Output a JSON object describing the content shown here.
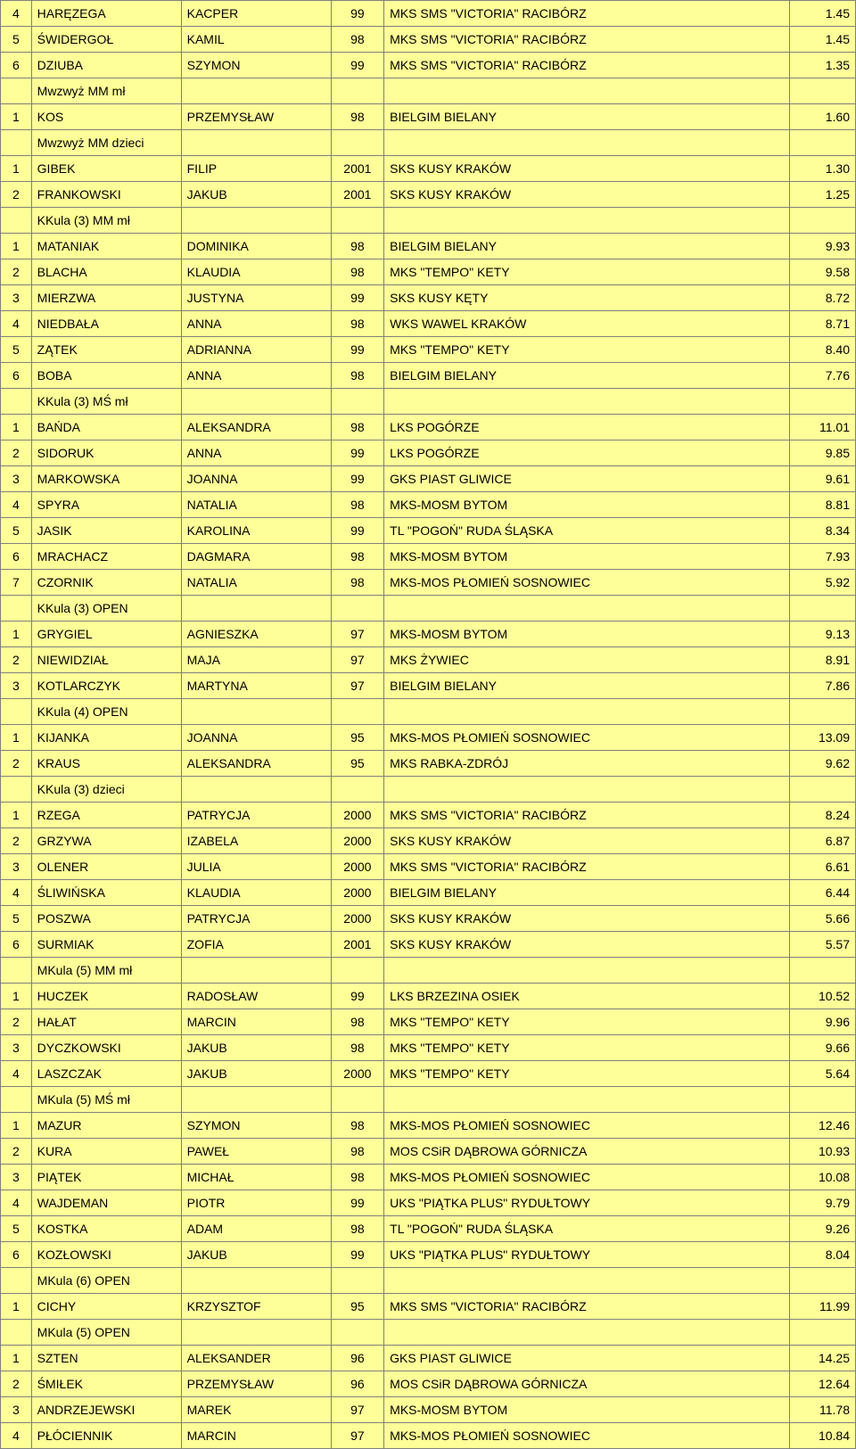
{
  "colors": {
    "cell_bg": "#ffff99",
    "border": "#808080",
    "text": "#000000"
  },
  "rows": [
    {
      "type": "d",
      "pos": "4",
      "last": "HARĘZEGA",
      "first": "KACPER",
      "year": "99",
      "club": "MKS SMS \"VICTORIA\" RACIBÓRZ",
      "score": "1.45"
    },
    {
      "type": "d",
      "pos": "5",
      "last": "ŚWIDERGOŁ",
      "first": "KAMIL",
      "year": "98",
      "club": "MKS SMS \"VICTORIA\" RACIBÓRZ",
      "score": "1.45"
    },
    {
      "type": "d",
      "pos": "6",
      "last": "DZIUBA",
      "first": "SZYMON",
      "year": "99",
      "club": "MKS SMS \"VICTORIA\" RACIBÓRZ",
      "score": "1.35"
    },
    {
      "type": "h",
      "label": "Mwzwyż MM mł"
    },
    {
      "type": "d",
      "pos": "1",
      "last": "KOS",
      "first": "PRZEMYSŁAW",
      "year": "98",
      "club": "BIELGIM BIELANY",
      "score": "1.60"
    },
    {
      "type": "h",
      "label": "Mwzwyż MM dzieci"
    },
    {
      "type": "d",
      "pos": "1",
      "last": "GIBEK",
      "first": "FILIP",
      "year": "2001",
      "club": "SKS KUSY KRAKÓW",
      "score": "1.30"
    },
    {
      "type": "d",
      "pos": "2",
      "last": "FRANKOWSKI",
      "first": "JAKUB",
      "year": "2001",
      "club": "SKS KUSY KRAKÓW",
      "score": "1.25"
    },
    {
      "type": "h",
      "label": "KKula (3) MM mł"
    },
    {
      "type": "d",
      "pos": "1",
      "last": "MATANIAK",
      "first": "DOMINIKA",
      "year": "98",
      "club": "BIELGIM BIELANY",
      "score": "9.93"
    },
    {
      "type": "d",
      "pos": "2",
      "last": "BLACHA",
      "first": "KLAUDIA",
      "year": "98",
      "club": "MKS \"TEMPO\" KETY",
      "score": "9.58"
    },
    {
      "type": "d",
      "pos": "3",
      "last": "MIERZWA",
      "first": "JUSTYNA",
      "year": "99",
      "club": "SKS KUSY KĘTY",
      "score": "8.72"
    },
    {
      "type": "d",
      "pos": "4",
      "last": "NIEDBAŁA",
      "first": "ANNA",
      "year": "98",
      "club": "WKS WAWEL KRAKÓW",
      "score": "8.71"
    },
    {
      "type": "d",
      "pos": "5",
      "last": "ZĄTEK",
      "first": "ADRIANNA",
      "year": "99",
      "club": "MKS \"TEMPO\" KETY",
      "score": "8.40"
    },
    {
      "type": "d",
      "pos": "6",
      "last": "BOBA",
      "first": "ANNA",
      "year": "98",
      "club": "BIELGIM BIELANY",
      "score": "7.76"
    },
    {
      "type": "h",
      "label": "KKula (3) MŚ mł"
    },
    {
      "type": "d",
      "pos": "1",
      "last": "BAŃDA",
      "first": "ALEKSANDRA",
      "year": "98",
      "club": "LKS POGÓRZE",
      "score": "11.01"
    },
    {
      "type": "d",
      "pos": "2",
      "last": "SIDORUK",
      "first": "ANNA",
      "year": "99",
      "club": "LKS POGÓRZE",
      "score": "9.85"
    },
    {
      "type": "d",
      "pos": "3",
      "last": "MARKOWSKA",
      "first": "JOANNA",
      "year": "99",
      "club": "GKS PIAST GLIWICE",
      "score": "9.61"
    },
    {
      "type": "d",
      "pos": "4",
      "last": "SPYRA",
      "first": "NATALIA",
      "year": "98",
      "club": "MKS-MOSM BYTOM",
      "score": "8.81"
    },
    {
      "type": "d",
      "pos": "5",
      "last": "JASIK",
      "first": "KAROLINA",
      "year": "99",
      "club": "TL \"POGOŃ\" RUDA ŚLĄSKA",
      "score": "8.34"
    },
    {
      "type": "d",
      "pos": "6",
      "last": "MRACHACZ",
      "first": "DAGMARA",
      "year": "98",
      "club": "MKS-MOSM BYTOM",
      "score": "7.93"
    },
    {
      "type": "d",
      "pos": "7",
      "last": "CZORNIK",
      "first": "NATALIA",
      "year": "98",
      "club": "MKS-MOS PŁOMIEŃ SOSNOWIEC",
      "score": "5.92"
    },
    {
      "type": "h",
      "label": "KKula (3) OPEN"
    },
    {
      "type": "d",
      "pos": "1",
      "last": "GRYGIEL",
      "first": "AGNIESZKA",
      "year": "97",
      "club": "MKS-MOSM BYTOM",
      "score": "9.13"
    },
    {
      "type": "d",
      "pos": "2",
      "last": "NIEWIDZIAŁ",
      "first": "MAJA",
      "year": "97",
      "club": "MKS ŻYWIEC",
      "score": "8.91"
    },
    {
      "type": "d",
      "pos": "3",
      "last": "KOTLARCZYK",
      "first": "MARTYNA",
      "year": "97",
      "club": "BIELGIM BIELANY",
      "score": "7.86"
    },
    {
      "type": "h",
      "label": "KKula (4) OPEN"
    },
    {
      "type": "d",
      "pos": "1",
      "last": "KIJANKA",
      "first": "JOANNA",
      "year": "95",
      "club": "MKS-MOS PŁOMIEŃ SOSNOWIEC",
      "score": "13.09"
    },
    {
      "type": "d",
      "pos": "2",
      "last": "KRAUS",
      "first": "ALEKSANDRA",
      "year": "95",
      "club": "MKS RABKA-ZDRÓJ",
      "score": "9.62"
    },
    {
      "type": "h",
      "label": "KKula (3) dzieci"
    },
    {
      "type": "d",
      "pos": "1",
      "last": "RZEGA",
      "first": "PATRYCJA",
      "year": "2000",
      "club": "MKS SMS \"VICTORIA\" RACIBÓRZ",
      "score": "8.24"
    },
    {
      "type": "d",
      "pos": "2",
      "last": "GRZYWA",
      "first": "IZABELA",
      "year": "2000",
      "club": "SKS KUSY KRAKÓW",
      "score": "6.87"
    },
    {
      "type": "d",
      "pos": "3",
      "last": "OLENER",
      "first": "JULIA",
      "year": "2000",
      "club": "MKS SMS \"VICTORIA\" RACIBÓRZ",
      "score": "6.61"
    },
    {
      "type": "d",
      "pos": "4",
      "last": "ŚLIWIŃSKA",
      "first": "KLAUDIA",
      "year": "2000",
      "club": "BIELGIM BIELANY",
      "score": "6.44"
    },
    {
      "type": "d",
      "pos": "5",
      "last": "POSZWA",
      "first": "PATRYCJA",
      "year": "2000",
      "club": "SKS KUSY KRAKÓW",
      "score": "5.66"
    },
    {
      "type": "d",
      "pos": "6",
      "last": "SURMIAK",
      "first": "ZOFIA",
      "year": "2001",
      "club": "SKS KUSY KRAKÓW",
      "score": "5.57"
    },
    {
      "type": "h",
      "label": "MKula (5) MM mł"
    },
    {
      "type": "d",
      "pos": "1",
      "last": "HUCZEK",
      "first": "RADOSŁAW",
      "year": "99",
      "club": "LKS BRZEZINA OSIEK",
      "score": "10.52"
    },
    {
      "type": "d",
      "pos": "2",
      "last": "HAŁAT",
      "first": "MARCIN",
      "year": "98",
      "club": "MKS \"TEMPO\" KETY",
      "score": "9.96"
    },
    {
      "type": "d",
      "pos": "3",
      "last": "DYCZKOWSKI",
      "first": "JAKUB",
      "year": "98",
      "club": "MKS \"TEMPO\" KETY",
      "score": "9.66"
    },
    {
      "type": "d",
      "pos": "4",
      "last": "LASZCZAK",
      "first": "JAKUB",
      "year": "2000",
      "club": "MKS \"TEMPO\" KETY",
      "score": "5.64"
    },
    {
      "type": "h",
      "label": "MKula (5) MŚ mł"
    },
    {
      "type": "d",
      "pos": "1",
      "last": "MAZUR",
      "first": "SZYMON",
      "year": "98",
      "club": "MKS-MOS PŁOMIEŃ SOSNOWIEC",
      "score": "12.46"
    },
    {
      "type": "d",
      "pos": "2",
      "last": "KURA",
      "first": "PAWEŁ",
      "year": "98",
      "club": "MOS CSiR DĄBROWA GÓRNICZA",
      "score": "10.93"
    },
    {
      "type": "d",
      "pos": "3",
      "last": "PIĄTEK",
      "first": "MICHAŁ",
      "year": "98",
      "club": "MKS-MOS PŁOMIEŃ SOSNOWIEC",
      "score": "10.08"
    },
    {
      "type": "d",
      "pos": "4",
      "last": "WAJDEMAN",
      "first": "PIOTR",
      "year": "99",
      "club": "UKS \"PIĄTKA PLUS\" RYDUŁTOWY",
      "score": "9.79"
    },
    {
      "type": "d",
      "pos": "5",
      "last": "KOSTKA",
      "first": "ADAM",
      "year": "98",
      "club": "TL \"POGOŃ\" RUDA ŚLĄSKA",
      "score": "9.26"
    },
    {
      "type": "d",
      "pos": "6",
      "last": "KOZŁOWSKI",
      "first": "JAKUB",
      "year": "99",
      "club": "UKS \"PIĄTKA PLUS\" RYDUŁTOWY",
      "score": "8.04"
    },
    {
      "type": "h",
      "label": "MKula (6) OPEN"
    },
    {
      "type": "d",
      "pos": "1",
      "last": "CICHY",
      "first": "KRZYSZTOF",
      "year": "95",
      "club": "MKS SMS \"VICTORIA\" RACIBÓRZ",
      "score": "11.99"
    },
    {
      "type": "h",
      "label": "MKula (5) OPEN"
    },
    {
      "type": "d",
      "pos": "1",
      "last": "SZTEN",
      "first": "ALEKSANDER",
      "year": "96",
      "club": "GKS PIAST GLIWICE",
      "score": "14.25"
    },
    {
      "type": "d",
      "pos": "2",
      "last": "ŚMIŁEK",
      "first": "PRZEMYSŁAW",
      "year": "96",
      "club": "MOS CSiR DĄBROWA GÓRNICZA",
      "score": "12.64"
    },
    {
      "type": "d",
      "pos": "3",
      "last": "ANDRZEJEWSKI",
      "first": "MAREK",
      "year": "97",
      "club": "MKS-MOSM BYTOM",
      "score": "11.78"
    },
    {
      "type": "d",
      "pos": "4",
      "last": "PŁÓCIENNIK",
      "first": "MARCIN",
      "year": "97",
      "club": "MKS-MOS PŁOMIEŃ SOSNOWIEC",
      "score": "10.84"
    }
  ]
}
